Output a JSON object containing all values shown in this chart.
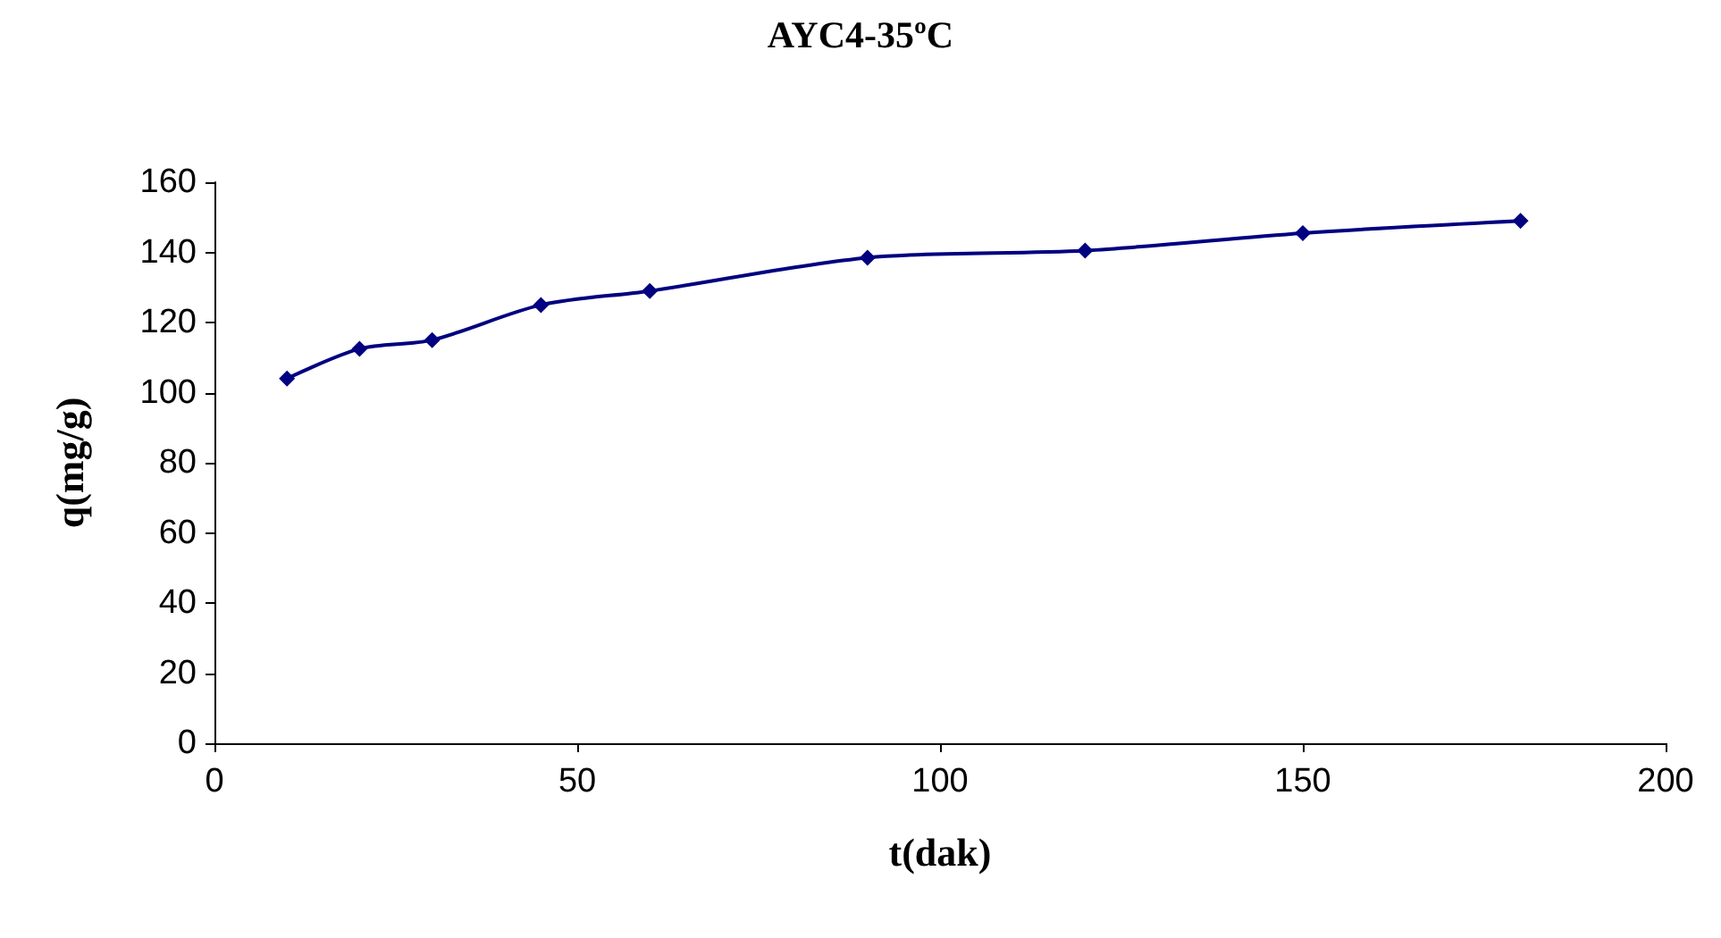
{
  "chart_data": {
    "type": "line",
    "title": "AYC4-35ºC",
    "xlabel": "t(dak)",
    "ylabel": "q(mg/g)",
    "x": [
      10,
      20,
      30,
      45,
      60,
      90,
      120,
      150,
      180
    ],
    "series": [
      {
        "color": "#000080",
        "values": [
          104,
          112.5,
          115,
          125,
          129,
          138.5,
          140.5,
          145.5,
          149
        ]
      }
    ],
    "xlim": [
      0,
      200
    ],
    "xticks": [
      0,
      50,
      100,
      150,
      200
    ],
    "ylim": [
      0,
      160
    ],
    "yticks": [
      0,
      20,
      40,
      60,
      80,
      100,
      120,
      140,
      160
    ],
    "grid": false,
    "marker": "diamond",
    "line_style": "solid"
  }
}
